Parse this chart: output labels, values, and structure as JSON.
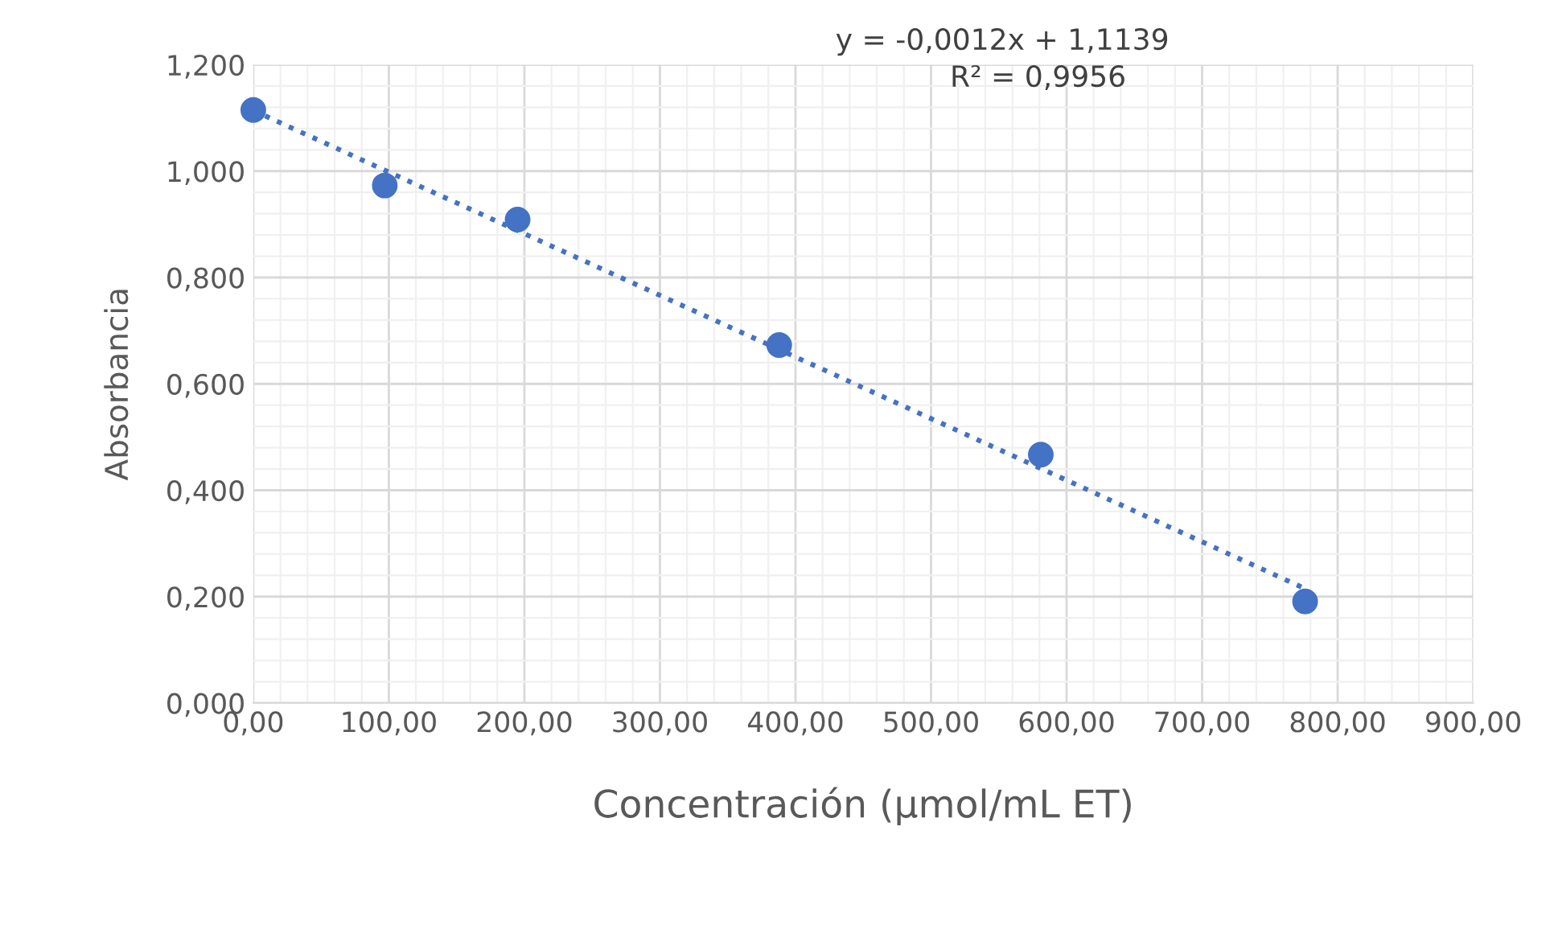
{
  "chart_data": {
    "type": "scatter",
    "xlabel": "Concentración (µmol/mL ET)",
    "ylabel": "Absorbancia",
    "series": [
      {
        "color": "#4472c4",
        "marker": "circle",
        "x": [
          0,
          97,
          195,
          388,
          581,
          776
        ],
        "values": [
          1.115,
          0.973,
          0.909,
          0.673,
          0.467,
          0.191
        ]
      },
      {
        "type": "line",
        "color": "#4472c4",
        "line_style": "dotted",
        "marker": "none",
        "x": [
          0,
          776
        ],
        "values": [
          1.114,
          0.215
        ]
      }
    ],
    "annotations": [
      {
        "text": "y = -0,0012x + 1,1139"
      },
      {
        "text": "R² = 0,9956"
      }
    ],
    "xlim": [
      0,
      900
    ],
    "ylim": [
      0,
      1.2
    ],
    "xticks": [
      {
        "value": 0,
        "label": "0,00"
      },
      {
        "value": 100,
        "label": "100,00"
      },
      {
        "value": 200,
        "label": "200,00"
      },
      {
        "value": 300,
        "label": "300,00"
      },
      {
        "value": 400,
        "label": "400,00"
      },
      {
        "value": 500,
        "label": "500,00"
      },
      {
        "value": 600,
        "label": "600,00"
      },
      {
        "value": 700,
        "label": "700,00"
      },
      {
        "value": 800,
        "label": "800,00"
      },
      {
        "value": 900,
        "label": "900,00"
      }
    ],
    "yticks": [
      {
        "value": 0,
        "label": "0,000"
      },
      {
        "value": 0.2,
        "label": "0,200"
      },
      {
        "value": 0.4,
        "label": "0,400"
      },
      {
        "value": 0.6,
        "label": "0,600"
      },
      {
        "value": 0.8,
        "label": "0,800"
      },
      {
        "value": 1.0,
        "label": "1,000"
      },
      {
        "value": 1.2,
        "label": "1,200"
      }
    ],
    "grid": true,
    "legend": false
  }
}
